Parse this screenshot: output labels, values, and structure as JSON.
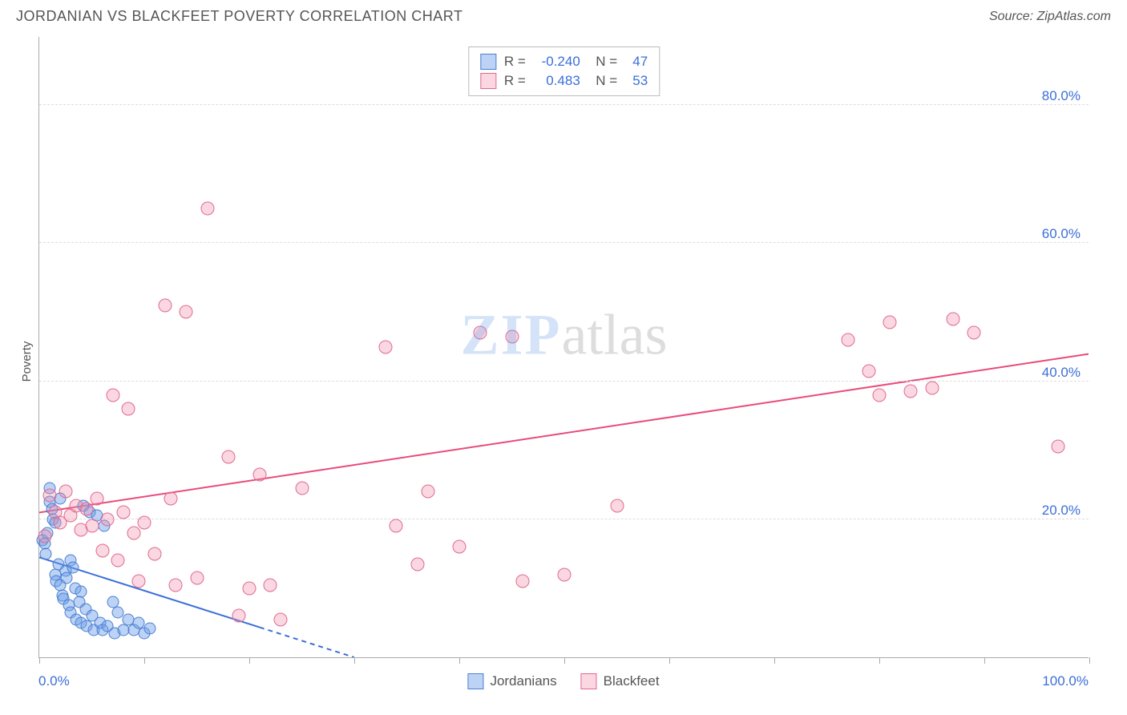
{
  "header": {
    "title": "JORDANIAN VS BLACKFEET POVERTY CORRELATION CHART",
    "source": "Source: ZipAtlas.com"
  },
  "ylabel": "Poverty",
  "watermark": {
    "part1": "ZIP",
    "part2": "atlas"
  },
  "chart": {
    "type": "scatter",
    "xlim": [
      0,
      100
    ],
    "ylim": [
      0,
      90
    ],
    "x_ticks": [
      0,
      10,
      20,
      30,
      40,
      50,
      60,
      70,
      80,
      90,
      100
    ],
    "y_gridlines": [
      20,
      40,
      60,
      80
    ],
    "y_tick_labels": [
      "20.0%",
      "40.0%",
      "60.0%",
      "80.0%"
    ],
    "x_axis_labels": {
      "left": "0.0%",
      "right": "100.0%"
    },
    "background_color": "#ffffff",
    "grid_color": "#dddddd",
    "axis_color": "#aaaaaa",
    "label_color": "#3b6fd8",
    "point_radius_blue": 7.5,
    "point_radius_pink": 8.5,
    "series": [
      {
        "name": "Jordanians",
        "color_fill": "rgba(107,158,233,0.45)",
        "color_stroke": "#4b7fd0",
        "css_class": "blue",
        "r_value": "-0.240",
        "n_value": "47",
        "trend": {
          "x1": 0,
          "y1": 14.5,
          "x2": 30,
          "y2": 0,
          "color": "#3b6fd8",
          "width": 2,
          "dash_after_x": 21
        },
        "points": [
          [
            0.3,
            17
          ],
          [
            0.5,
            16.5
          ],
          [
            0.6,
            15
          ],
          [
            0.8,
            18
          ],
          [
            1,
            24.5
          ],
          [
            1,
            22.5
          ],
          [
            1.2,
            21.5
          ],
          [
            1.3,
            20
          ],
          [
            1.5,
            19.5
          ],
          [
            1.5,
            12
          ],
          [
            1.6,
            11
          ],
          [
            1.8,
            13.5
          ],
          [
            2,
            23
          ],
          [
            2,
            10.5
          ],
          [
            2.2,
            9
          ],
          [
            2.3,
            8.5
          ],
          [
            2.5,
            12.5
          ],
          [
            2.6,
            11.5
          ],
          [
            2.8,
            7.5
          ],
          [
            3,
            6.5
          ],
          [
            3,
            14
          ],
          [
            3.2,
            13
          ],
          [
            3.4,
            10
          ],
          [
            3.5,
            5.5
          ],
          [
            3.8,
            8
          ],
          [
            4,
            9.5
          ],
          [
            4,
            5
          ],
          [
            4.2,
            22
          ],
          [
            4.4,
            7
          ],
          [
            4.5,
            4.5
          ],
          [
            4.8,
            21
          ],
          [
            5,
            6
          ],
          [
            5.2,
            4
          ],
          [
            5.5,
            20.5
          ],
          [
            5.8,
            5
          ],
          [
            6,
            4
          ],
          [
            6.2,
            19
          ],
          [
            6.5,
            4.5
          ],
          [
            7,
            8
          ],
          [
            7.2,
            3.5
          ],
          [
            7.5,
            6.5
          ],
          [
            8,
            4
          ],
          [
            8.5,
            5.5
          ],
          [
            9,
            4
          ],
          [
            9.5,
            5
          ],
          [
            10,
            3.5
          ],
          [
            10.5,
            4.2
          ]
        ]
      },
      {
        "name": "Blackfeet",
        "color_fill": "rgba(242,140,170,0.35)",
        "color_stroke": "#e06a93",
        "css_class": "pink",
        "r_value": "0.483",
        "n_value": "53",
        "trend": {
          "x1": 0,
          "y1": 21,
          "x2": 100,
          "y2": 44,
          "color": "#e94b7a",
          "width": 2,
          "dash_after_x": 101
        },
        "points": [
          [
            0.5,
            17.5
          ],
          [
            1,
            23.5
          ],
          [
            1.5,
            21
          ],
          [
            2,
            19.5
          ],
          [
            2.5,
            24
          ],
          [
            3,
            20.5
          ],
          [
            3.5,
            22
          ],
          [
            4,
            18.5
          ],
          [
            4.5,
            21.5
          ],
          [
            5,
            19
          ],
          [
            5.5,
            23
          ],
          [
            6,
            15.5
          ],
          [
            6.5,
            20
          ],
          [
            7,
            38
          ],
          [
            7.5,
            14
          ],
          [
            8,
            21
          ],
          [
            8.5,
            36
          ],
          [
            9,
            18
          ],
          [
            9.5,
            11
          ],
          [
            10,
            19.5
          ],
          [
            11,
            15
          ],
          [
            12,
            51
          ],
          [
            12.5,
            23
          ],
          [
            13,
            10.5
          ],
          [
            14,
            50
          ],
          [
            15,
            11.5
          ],
          [
            16,
            65
          ],
          [
            18,
            29
          ],
          [
            19,
            6
          ],
          [
            20,
            10
          ],
          [
            21,
            26.5
          ],
          [
            22,
            10.5
          ],
          [
            23,
            5.5
          ],
          [
            25,
            24.5
          ],
          [
            33,
            45
          ],
          [
            34,
            19
          ],
          [
            36,
            13.5
          ],
          [
            37,
            24
          ],
          [
            40,
            16
          ],
          [
            42,
            47
          ],
          [
            45,
            46.5
          ],
          [
            46,
            11
          ],
          [
            77,
            46
          ],
          [
            79,
            41.5
          ],
          [
            80,
            38
          ],
          [
            81,
            48.5
          ],
          [
            83,
            38.5
          ],
          [
            85,
            39
          ],
          [
            87,
            49
          ],
          [
            89,
            47
          ],
          [
            97,
            30.5
          ],
          [
            50,
            12
          ],
          [
            55,
            22
          ]
        ]
      }
    ]
  },
  "legend_bottom": [
    {
      "swatch": "blue",
      "label": "Jordanians"
    },
    {
      "swatch": "pink",
      "label": "Blackfeet"
    }
  ]
}
